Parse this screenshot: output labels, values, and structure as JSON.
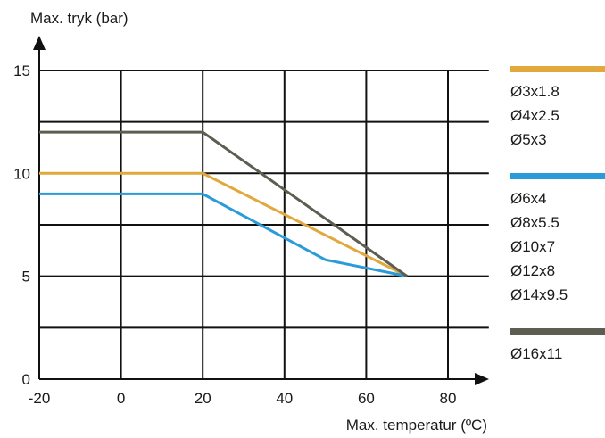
{
  "chart_data": {
    "type": "line",
    "xlabel": "Max. temperatur (ºC)",
    "ylabel": "Max. tryk (bar)",
    "xlim": [
      -20,
      90
    ],
    "ylim": [
      0,
      15
    ],
    "x_ticks": [
      -20,
      0,
      20,
      40,
      60,
      80
    ],
    "y_ticks": [
      0,
      5,
      10,
      15
    ],
    "grid": true,
    "legend_position": "right",
    "series": [
      {
        "color": "#E1A93D",
        "labels": [
          "Ø3x1.8",
          "Ø4x2.5",
          "Ø5x3"
        ],
        "points": [
          [
            -20,
            10
          ],
          [
            20,
            10
          ],
          [
            70,
            5
          ]
        ]
      },
      {
        "color": "#2A9BD8",
        "labels": [
          "Ø6x4",
          "Ø8x5.5",
          "Ø10x7",
          "Ø12x8",
          "Ø14x9.5"
        ],
        "points": [
          [
            -20,
            9
          ],
          [
            20,
            9
          ],
          [
            50,
            5.8
          ],
          [
            70,
            5
          ]
        ]
      },
      {
        "color": "#5D5D52",
        "labels": [
          "Ø16x11"
        ],
        "points": [
          [
            -20,
            12
          ],
          [
            20,
            12
          ],
          [
            70,
            5
          ]
        ]
      }
    ]
  }
}
